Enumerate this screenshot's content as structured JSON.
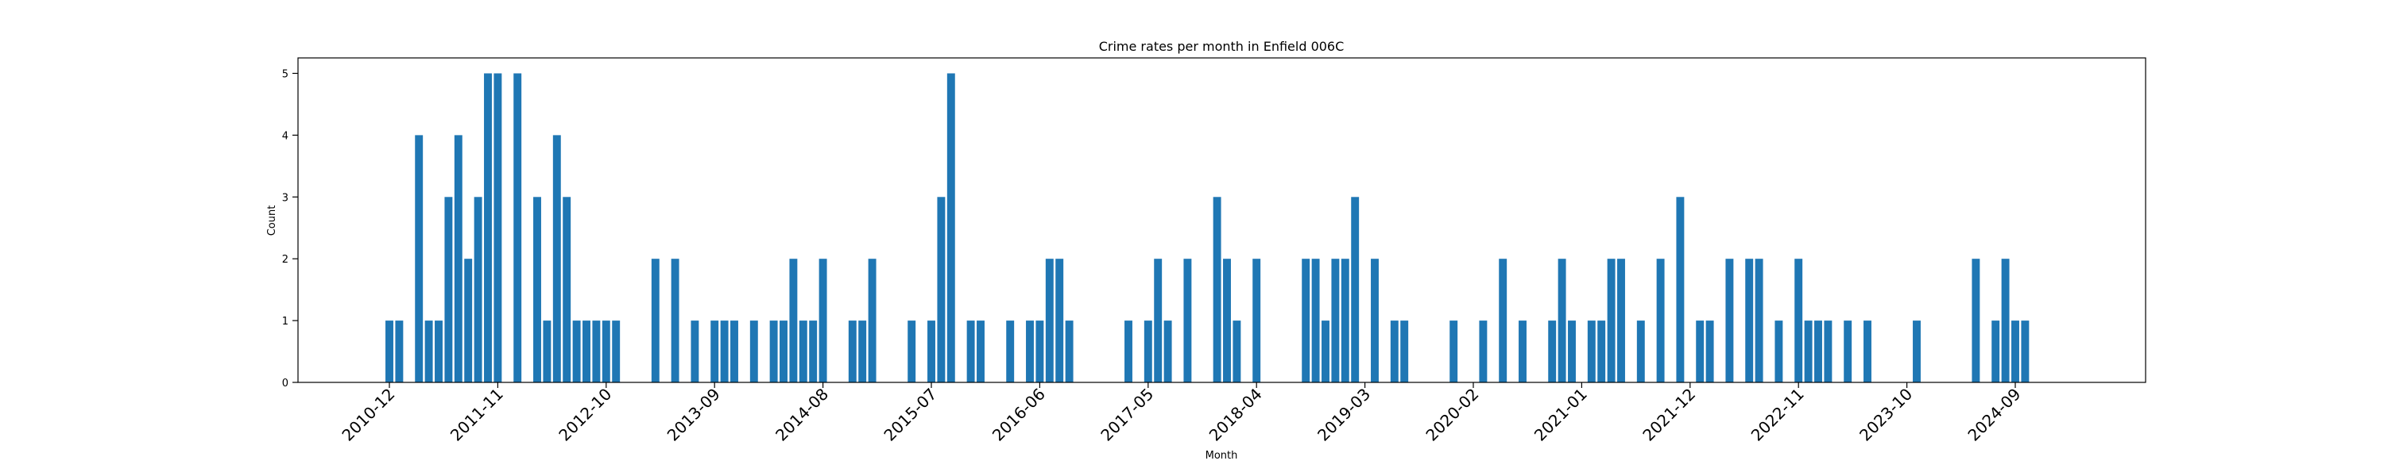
{
  "chart_data": {
    "type": "bar",
    "title": "Crime rates per month in Enfield 006C",
    "xlabel": "Month",
    "ylabel": "Count",
    "ylim": [
      0,
      5.25
    ],
    "yticks": [
      0,
      1,
      2,
      3,
      4,
      5
    ],
    "xtick_labels": [
      "2010-12",
      "2011-11",
      "2012-10",
      "2013-09",
      "2014-08",
      "2015-07",
      "2016-06",
      "2017-05",
      "2018-04",
      "2019-03",
      "2020-02",
      "2021-01",
      "2021-12",
      "2022-11",
      "2023-10",
      "2024-09"
    ],
    "bar_color": "#1f77b4",
    "categories": [
      "2010-12",
      "2011-01",
      "2011-03",
      "2011-04",
      "2011-05",
      "2011-06",
      "2011-07",
      "2011-08",
      "2011-09",
      "2011-10",
      "2011-11",
      "2012-01",
      "2012-03",
      "2012-04",
      "2012-05",
      "2012-06",
      "2012-07",
      "2012-08",
      "2012-09",
      "2012-10",
      "2012-11",
      "2013-03",
      "2013-05",
      "2013-07",
      "2013-09",
      "2013-10",
      "2013-11",
      "2014-01",
      "2014-03",
      "2014-04",
      "2014-05",
      "2014-06",
      "2014-07",
      "2014-08",
      "2014-11",
      "2014-12",
      "2015-01",
      "2015-05",
      "2015-07",
      "2015-08",
      "2015-09",
      "2015-11",
      "2015-12",
      "2016-03",
      "2016-05",
      "2016-06",
      "2016-07",
      "2016-08",
      "2016-09",
      "2017-03",
      "2017-05",
      "2017-06",
      "2017-07",
      "2017-09",
      "2017-12",
      "2018-01",
      "2018-02",
      "2018-04",
      "2018-09",
      "2018-10",
      "2018-11",
      "2018-12",
      "2019-01",
      "2019-02",
      "2019-04",
      "2019-06",
      "2019-07",
      "2019-12",
      "2020-03",
      "2020-05",
      "2020-07",
      "2020-10",
      "2020-11",
      "2020-12",
      "2021-02",
      "2021-03",
      "2021-04",
      "2021-05",
      "2021-07",
      "2021-09",
      "2021-11",
      "2022-01",
      "2022-02",
      "2022-04",
      "2022-06",
      "2022-07",
      "2022-09",
      "2022-11",
      "2022-12",
      "2023-01",
      "2023-02",
      "2023-04",
      "2023-06",
      "2023-11",
      "2024-05",
      "2024-07",
      "2024-08",
      "2024-09",
      "2024-10"
    ],
    "values": [
      1,
      1,
      4,
      1,
      1,
      3,
      4,
      2,
      3,
      5,
      5,
      5,
      3,
      1,
      4,
      3,
      1,
      1,
      1,
      1,
      1,
      2,
      2,
      1,
      1,
      1,
      1,
      1,
      1,
      1,
      2,
      1,
      1,
      2,
      1,
      1,
      2,
      1,
      1,
      3,
      5,
      1,
      1,
      1,
      1,
      1,
      2,
      2,
      1,
      1,
      1,
      2,
      1,
      2,
      3,
      2,
      1,
      2,
      2,
      2,
      1,
      2,
      2,
      3,
      2,
      1,
      1,
      1,
      1,
      2,
      1,
      1,
      2,
      1,
      1,
      1,
      2,
      2,
      1,
      2,
      3,
      1,
      1,
      2,
      2,
      2,
      1,
      2,
      1,
      1,
      1,
      1,
      1,
      1,
      2,
      1,
      2,
      1,
      1
    ]
  }
}
